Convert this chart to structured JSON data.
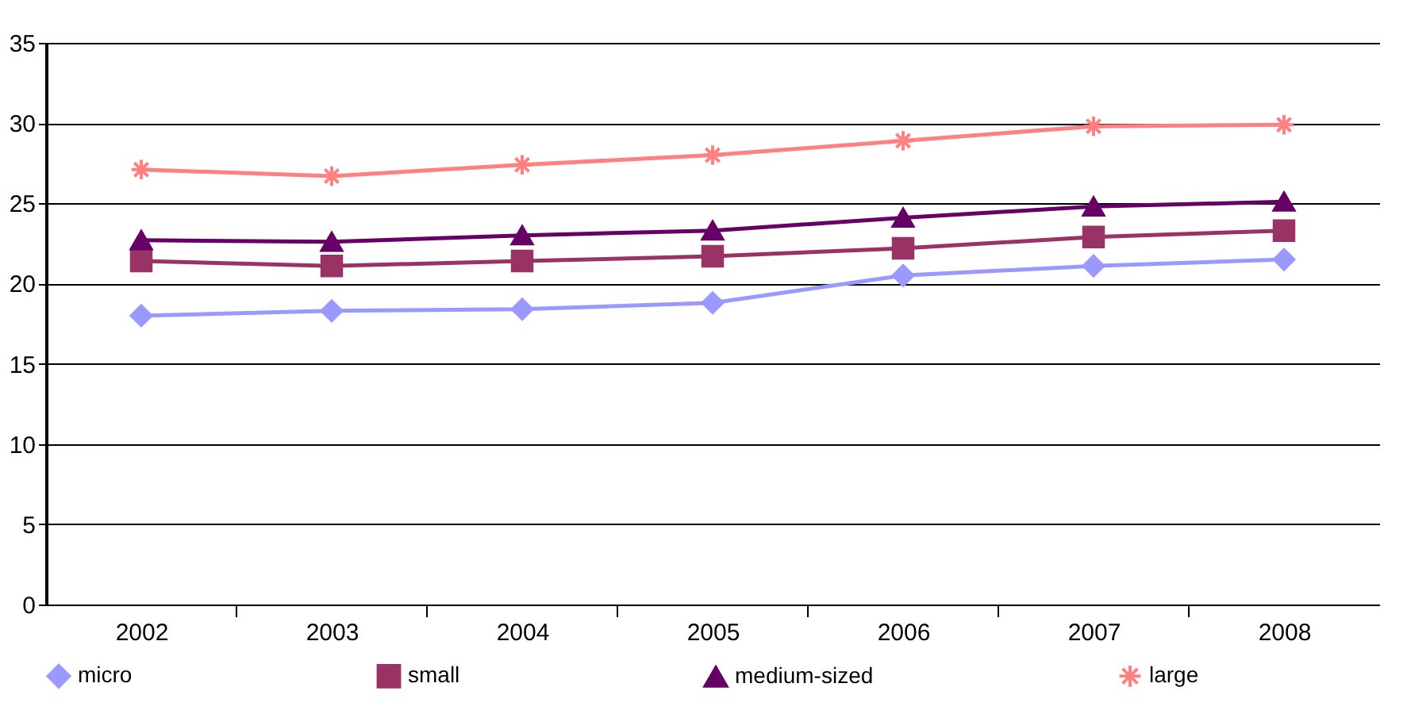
{
  "chart_data": {
    "type": "line",
    "categories": [
      "2002",
      "2003",
      "2004",
      "2005",
      "2006",
      "2007",
      "2008"
    ],
    "series": [
      {
        "name": "micro",
        "color": "#9999ff",
        "marker": "diamond",
        "values": [
          18.0,
          18.3,
          18.4,
          18.8,
          20.5,
          21.1,
          21.5
        ]
      },
      {
        "name": "small",
        "color": "#993366",
        "marker": "square",
        "values": [
          21.4,
          21.1,
          21.4,
          21.7,
          22.2,
          22.9,
          23.3
        ]
      },
      {
        "name": "medium-sized",
        "color": "#660066",
        "marker": "triangle",
        "values": [
          22.7,
          22.6,
          23.0,
          23.3,
          24.1,
          24.8,
          25.1
        ]
      },
      {
        "name": "large",
        "color": "#ff8080",
        "marker": "cross",
        "values": [
          27.1,
          26.7,
          27.4,
          28.0,
          28.9,
          29.8,
          29.9
        ]
      }
    ],
    "ylim": [
      0,
      35
    ],
    "yticks": [
      0,
      5,
      10,
      15,
      20,
      25,
      30,
      35
    ],
    "grid": "y",
    "legend": "bottom",
    "line_style": "solid"
  }
}
